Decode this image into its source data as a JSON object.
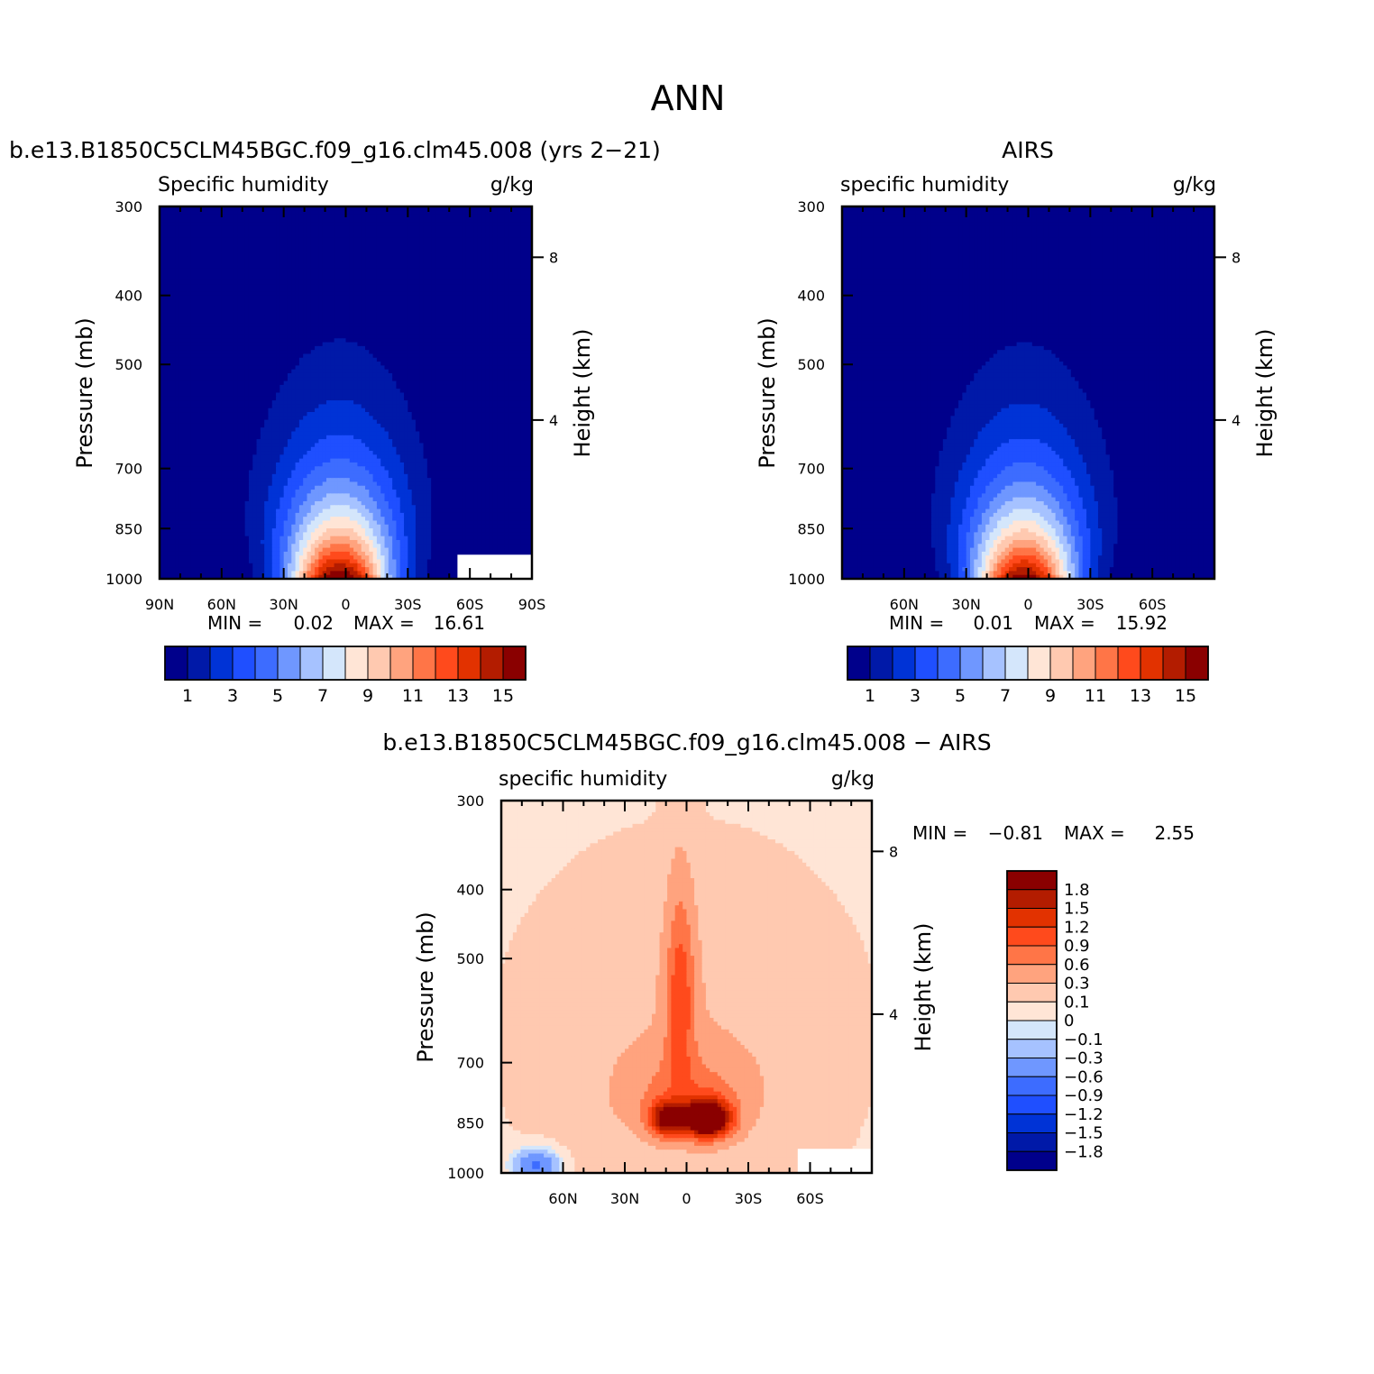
{
  "page_title": "ANN",
  "colors": {
    "abs_levels": [
      "#00008b",
      "#0019a8",
      "#0033d6",
      "#1f4fff",
      "#3d6cff",
      "#6f97ff",
      "#a6c2ff",
      "#d4e6fb",
      "#ffe5d6",
      "#ffc9b0",
      "#ffa37e",
      "#ff7547",
      "#ff4a1c",
      "#e23200",
      "#b31c00",
      "#8a0000"
    ],
    "diff_levels": [
      "#8a0000",
      "#b31c00",
      "#e23200",
      "#ff4a1c",
      "#ff7547",
      "#ffa37e",
      "#ffc9b0",
      "#ffe5d6",
      "#d4e6fb",
      "#a6c2ff",
      "#6f97ff",
      "#3d6cff",
      "#1f4fff",
      "#0033d6",
      "#0019a8",
      "#00008b"
    ]
  },
  "chart_data": [
    {
      "type": "contour",
      "panel_title": "b.e13.B1850C5CLM45BGC.f09_g16.clm45.008 (yrs 2−21)",
      "left_label": "Specific humidity",
      "right_label": "g/kg",
      "ylabel": "Pressure (mb)",
      "ylabel2": "Height (km)",
      "pressure_ticks": [
        "300",
        "400",
        "500",
        "700",
        "850",
        "1000"
      ],
      "pressure_values": [
        300,
        400,
        500,
        700,
        850,
        1000
      ],
      "height_ticks": [
        "8",
        "4"
      ],
      "height_values": [
        8,
        4
      ],
      "lat_ticks": [
        "90N",
        "60N",
        "30N",
        "0",
        "30S",
        "60S",
        "90S"
      ],
      "lat_values": [
        90,
        60,
        30,
        0,
        -30,
        -60,
        -90
      ],
      "xlim": [
        90,
        -90
      ],
      "ylim": [
        300,
        1000
      ],
      "min_label": "MIN =",
      "min_value": "0.02",
      "max_label": "MAX =",
      "max_value": "16.61",
      "colorbar_labels": [
        "1",
        "3",
        "5",
        "7",
        "9",
        "11",
        "13",
        "15"
      ],
      "peak": 16.61,
      "peak_lat": 3,
      "missing_region_note": "blank south of 54S below 925mb"
    },
    {
      "type": "contour",
      "panel_title": "AIRS",
      "left_label": "specific humidity",
      "right_label": "g/kg",
      "ylabel": "Pressure (mb)",
      "ylabel2": "Height (km)",
      "pressure_ticks": [
        "300",
        "400",
        "500",
        "700",
        "850",
        "1000"
      ],
      "pressure_values": [
        300,
        400,
        500,
        700,
        850,
        1000
      ],
      "height_ticks": [
        "8",
        "4"
      ],
      "height_values": [
        8,
        4
      ],
      "lat_ticks": [
        "60N",
        "30N",
        "0",
        "30S",
        "60S"
      ],
      "lat_values": [
        60,
        30,
        0,
        -30,
        -60
      ],
      "xlim": [
        90,
        -90
      ],
      "ylim": [
        300,
        1000
      ],
      "min_label": "MIN =",
      "min_value": "0.01",
      "max_label": "MAX =",
      "max_value": "15.92",
      "colorbar_labels": [
        "1",
        "3",
        "5",
        "7",
        "9",
        "11",
        "13",
        "15"
      ],
      "peak": 15.92,
      "peak_lat": 2
    },
    {
      "type": "contour",
      "panel_title": "b.e13.B1850C5CLM45BGC.f09_g16.clm45.008 − AIRS",
      "left_label": "specific humidity",
      "right_label": "g/kg",
      "ylabel": "Pressure (mb)",
      "ylabel2": "Height (km)",
      "pressure_ticks": [
        "300",
        "400",
        "500",
        "700",
        "850",
        "1000"
      ],
      "pressure_values": [
        300,
        400,
        500,
        700,
        850,
        1000
      ],
      "height_ticks": [
        "8",
        "4"
      ],
      "height_values": [
        8,
        4
      ],
      "lat_ticks": [
        "60N",
        "30N",
        "0",
        "30S",
        "60S"
      ],
      "lat_values": [
        60,
        30,
        0,
        -30,
        -60
      ],
      "xlim": [
        90,
        -90
      ],
      "ylim": [
        300,
        1000
      ],
      "min_label": "MIN =",
      "min_value": "−0.81",
      "max_label": "MAX =",
      "max_value": "2.55",
      "colorbar_labels": [
        "1.8",
        "1.5",
        "1.2",
        "0.9",
        "0.6",
        "0.3",
        "0.1",
        "0",
        "−0.1",
        "−0.3",
        "−0.6",
        "−0.9",
        "−1.2",
        "−1.5",
        "−1.8"
      ],
      "diff_levels": [
        1.8,
        1.5,
        1.2,
        0.9,
        0.6,
        0.3,
        0.1,
        0,
        -0.1,
        -0.3,
        -0.6,
        -0.9,
        -1.2,
        -1.5,
        -1.8
      ]
    }
  ]
}
